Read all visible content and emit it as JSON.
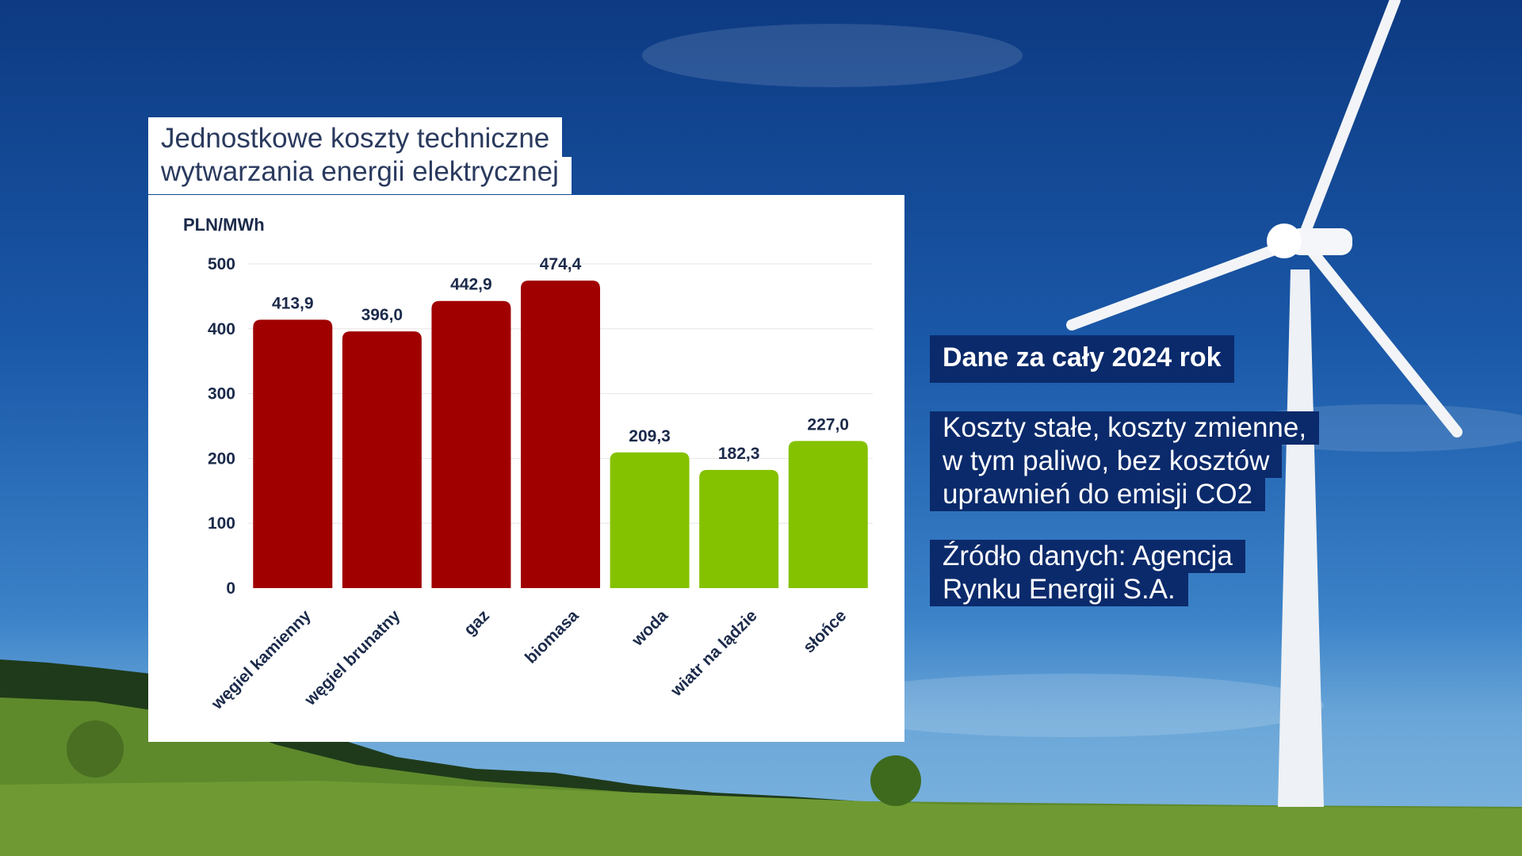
{
  "title": {
    "line1": "Jednostkowe koszty techniczne",
    "line2": "wytwarzania energii elektrycznej"
  },
  "info": {
    "heading": "Dane za cały 2024 rok",
    "note_lines": [
      "Koszty stałe, koszty zmienne,",
      "w tym paliwo, bez kosztów",
      "uprawnień do emisji CO2"
    ],
    "source_lines": [
      "Źródło danych: Agencja",
      "Rynku Energii S.A."
    ]
  },
  "colors": {
    "fossil": "#a00000",
    "renewable": "#84c200",
    "text_dark": "#1b2a4a",
    "info_bg": "#0b2a6b"
  },
  "chart_data": {
    "type": "bar",
    "ylabel": "PLN/MWh",
    "ylim": [
      0,
      500
    ],
    "yticks": [
      0,
      100,
      200,
      300,
      400,
      500
    ],
    "categories": [
      "węgiel kamienny",
      "węgiel brunatny",
      "gaz",
      "biomasa",
      "woda",
      "wiatr na lądzie",
      "słońce"
    ],
    "values": [
      413.9,
      396.0,
      442.9,
      474.4,
      209.3,
      182.3,
      227.0
    ],
    "value_labels": [
      "413,9",
      "396,0",
      "442,9",
      "474,4",
      "209,3",
      "182,3",
      "227,0"
    ],
    "groups": [
      "fossil",
      "fossil",
      "fossil",
      "fossil",
      "renewable",
      "renewable",
      "renewable"
    ],
    "grid": true,
    "legend": "none"
  }
}
